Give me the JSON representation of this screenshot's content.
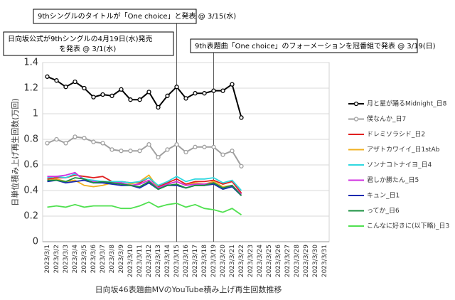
{
  "chart_data": {
    "type": "line",
    "y_label": "日単位積み上げ再生回数(万回)",
    "x_label": "日向坂46表題曲MVのYouTube積み上げ再生回数推移",
    "categories": [
      "2023/3/1",
      "2023/3/2",
      "2023/3/3",
      "2023/3/4",
      "2023/3/5",
      "2023/3/6",
      "2023/3/7",
      "2023/3/8",
      "2023/3/9",
      "2023/3/10",
      "2023/3/11",
      "2023/3/12",
      "2023/3/13",
      "2023/3/14",
      "2023/3/15",
      "2023/3/16",
      "2023/3/17",
      "2023/3/18",
      "2023/3/19",
      "2023/3/20",
      "2023/3/21",
      "2023/3/22",
      "2023/3/23",
      "2023/3/24",
      "2023/3/25",
      "2023/3/26",
      "2023/3/27",
      "2023/3/28",
      "2023/3/29",
      "2023/3/30",
      "2023/3/31"
    ],
    "ylim": [
      0,
      1.4
    ],
    "yticks": [
      0,
      0.2,
      0.4,
      0.6,
      0.8,
      1,
      1.2,
      1.4
    ],
    "grid": true,
    "legend": "right",
    "series": [
      {
        "name": "月と星が踊るMidnight_日8",
        "color": "#000000",
        "marker": true,
        "values": [
          1.29,
          1.26,
          1.21,
          1.25,
          1.2,
          1.13,
          1.15,
          1.14,
          1.19,
          1.11,
          1.11,
          1.17,
          1.05,
          1.14,
          1.21,
          1.12,
          1.16,
          1.16,
          1.18,
          1.18,
          1.23,
          0.97,
          null,
          null,
          null,
          null,
          null,
          null,
          null,
          null,
          null
        ]
      },
      {
        "name": "僕なんか_日7",
        "color": "#a0a0a0",
        "marker": true,
        "values": [
          0.77,
          0.8,
          0.77,
          0.82,
          0.81,
          0.78,
          0.77,
          0.72,
          0.71,
          0.71,
          0.71,
          0.76,
          0.66,
          0.72,
          0.76,
          0.7,
          0.74,
          0.74,
          0.74,
          0.68,
          0.71,
          0.59,
          null,
          null,
          null,
          null,
          null,
          null,
          null,
          null,
          null
        ]
      },
      {
        "name": "ドレミソラシド_日2",
        "color": "#e02020",
        "marker": false,
        "values": [
          0.49,
          0.5,
          0.5,
          0.52,
          0.51,
          0.5,
          0.51,
          0.47,
          0.47,
          0.46,
          0.46,
          0.5,
          0.43,
          0.46,
          0.49,
          0.45,
          0.47,
          0.47,
          0.48,
          0.45,
          0.47,
          0.38,
          null,
          null,
          null,
          null,
          null,
          null,
          null,
          null,
          null
        ]
      },
      {
        "name": "アザトカワイイ_日1stAb",
        "color": "#f0b020",
        "marker": false,
        "values": [
          0.48,
          0.49,
          0.47,
          0.48,
          0.44,
          0.43,
          0.44,
          0.46,
          0.45,
          0.45,
          0.47,
          0.52,
          0.42,
          0.45,
          0.47,
          0.44,
          0.46,
          0.45,
          0.47,
          0.43,
          0.44,
          0.37,
          null,
          null,
          null,
          null,
          null,
          null,
          null,
          null,
          null
        ]
      },
      {
        "name": "ソンナコトナイヨ_日4",
        "color": "#30d8e0",
        "marker": false,
        "values": [
          0.5,
          0.51,
          0.5,
          0.53,
          0.49,
          0.48,
          0.47,
          0.47,
          0.47,
          0.46,
          0.47,
          0.5,
          0.44,
          0.47,
          0.51,
          0.47,
          0.49,
          0.49,
          0.5,
          0.46,
          0.48,
          0.4,
          null,
          null,
          null,
          null,
          null,
          null,
          null,
          null,
          null
        ]
      },
      {
        "name": "君しか勝たん_日5",
        "color": "#d030e0",
        "marker": false,
        "values": [
          0.51,
          0.51,
          0.52,
          0.54,
          0.48,
          0.47,
          0.46,
          0.46,
          0.46,
          0.44,
          0.45,
          0.48,
          0.42,
          0.45,
          0.47,
          0.44,
          0.45,
          0.45,
          0.46,
          0.42,
          0.44,
          0.37,
          null,
          null,
          null,
          null,
          null,
          null,
          null,
          null,
          null
        ]
      },
      {
        "name": "キュン_日1",
        "color": "#1a2ab0",
        "marker": false,
        "values": [
          0.47,
          0.48,
          0.46,
          0.47,
          0.48,
          0.46,
          0.46,
          0.45,
          0.44,
          0.44,
          0.42,
          0.46,
          0.41,
          0.44,
          0.44,
          0.42,
          0.44,
          0.44,
          0.45,
          0.41,
          0.43,
          0.36,
          null,
          null,
          null,
          null,
          null,
          null,
          null,
          null,
          null
        ]
      },
      {
        "name": "ってか_日6",
        "color": "#1a9040",
        "marker": false,
        "values": [
          0.48,
          0.48,
          0.47,
          0.5,
          0.49,
          0.46,
          0.47,
          0.46,
          0.45,
          0.44,
          0.43,
          0.47,
          0.41,
          0.44,
          0.45,
          0.42,
          0.44,
          0.44,
          0.46,
          0.42,
          0.44,
          0.36,
          null,
          null,
          null,
          null,
          null,
          null,
          null,
          null,
          null
        ]
      },
      {
        "name": "こんなに好きに(以下略)_日3",
        "color": "#50e050",
        "marker": false,
        "values": [
          0.27,
          0.28,
          0.27,
          0.29,
          0.27,
          0.28,
          0.28,
          0.28,
          0.26,
          0.26,
          0.28,
          0.31,
          0.27,
          0.29,
          0.3,
          0.27,
          0.29,
          0.26,
          0.25,
          0.23,
          0.26,
          0.21,
          null,
          null,
          null,
          null,
          null,
          null,
          null,
          null,
          null
        ]
      }
    ],
    "annotations": [
      {
        "lines": [
          "9thシングルのタイトルが「One choice」と発表 @ 3/15(水)"
        ],
        "x": "2023/3/15"
      },
      {
        "lines": [
          "日向坂公式が9thシングルの4月19日(水)発売",
          "を発表 @ 3/1(水)"
        ]
      },
      {
        "lines": [
          "9th表題曲「One choice」のフォーメーションを冠番組で発表 @ 3/19(日)"
        ],
        "x": "2023/3/19"
      }
    ]
  }
}
